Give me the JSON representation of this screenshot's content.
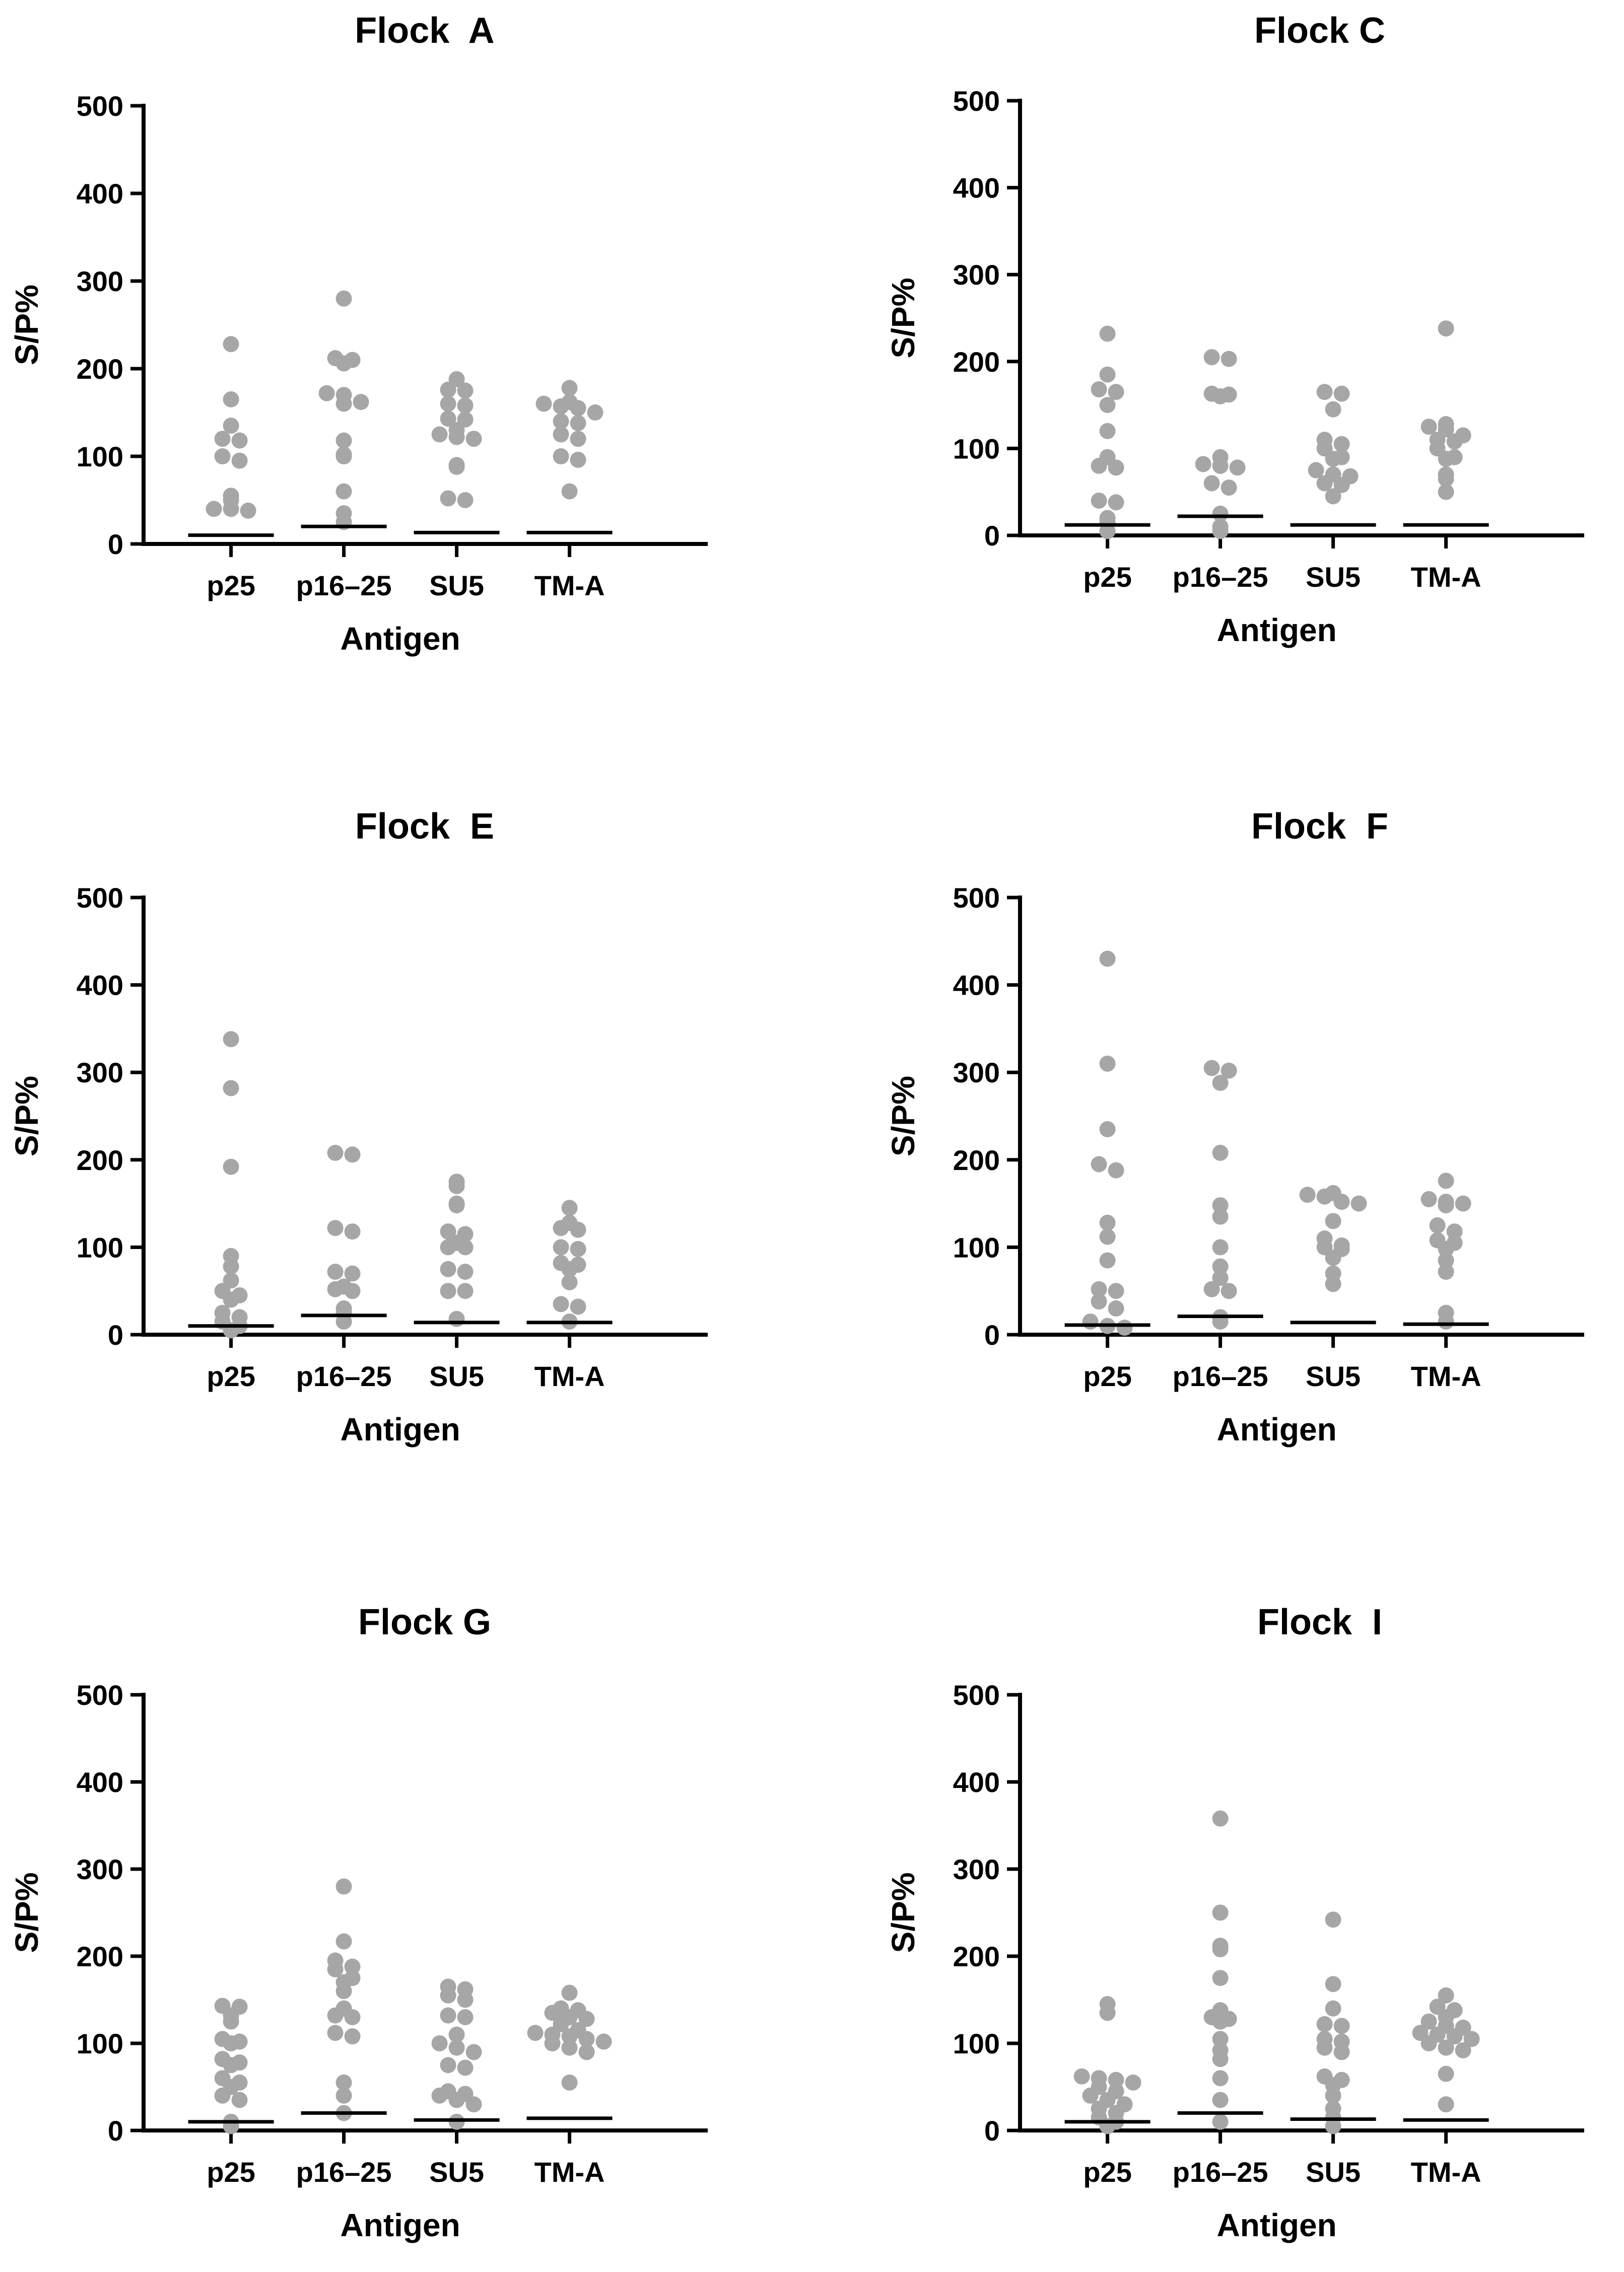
{
  "colors": {
    "point": "#a6a6a6",
    "axis": "#000000",
    "background": "#ffffff"
  },
  "chart_data": [
    {
      "type": "scatter",
      "title": "Flock  A",
      "xlabel": "Antigen",
      "ylabel": "S/P%",
      "ylim": [
        0,
        500
      ],
      "yticks": [
        "0",
        "100",
        "200",
        "300",
        "400",
        "500"
      ],
      "categories": [
        "p25",
        "p16–25",
        "SU5",
        "TM-A"
      ],
      "cutoffs": [
        10,
        20,
        13,
        13
      ],
      "series": [
        {
          "name": "p25",
          "values": [
            228,
            165,
            135,
            120,
            118,
            100,
            95,
            55,
            50,
            40,
            40,
            38
          ]
        },
        {
          "name": "p16–25",
          "values": [
            280,
            212,
            210,
            206,
            172,
            170,
            162,
            160,
            118,
            102,
            100,
            60,
            35,
            25
          ]
        },
        {
          "name": "SU5",
          "values": [
            188,
            176,
            175,
            160,
            158,
            143,
            142,
            130,
            125,
            122,
            120,
            90,
            88,
            52,
            50
          ]
        },
        {
          "name": "TM-A",
          "values": [
            178,
            162,
            160,
            157,
            155,
            150,
            140,
            138,
            125,
            120,
            100,
            96,
            60
          ]
        }
      ]
    },
    {
      "type": "scatter",
      "title": "Flock C",
      "xlabel": "Antigen",
      "ylabel": "S/P%",
      "ylim": [
        0,
        500
      ],
      "yticks": [
        "0",
        "100",
        "200",
        "300",
        "400",
        "500"
      ],
      "categories": [
        "p25",
        "p16–25",
        "SU5",
        "TM-A"
      ],
      "cutoffs": [
        12,
        22,
        12,
        12
      ],
      "series": [
        {
          "name": "p25",
          "values": [
            232,
            185,
            168,
            165,
            150,
            120,
            90,
            80,
            78,
            40,
            38,
            20,
            15,
            5
          ]
        },
        {
          "name": "p16–25",
          "values": [
            205,
            203,
            163,
            162,
            160,
            90,
            82,
            80,
            78,
            60,
            55,
            25,
            10,
            5
          ]
        },
        {
          "name": "SU5",
          "values": [
            165,
            163,
            145,
            110,
            105,
            100,
            90,
            88,
            75,
            70,
            68,
            60,
            58,
            45
          ]
        },
        {
          "name": "TM-A",
          "values": [
            238,
            128,
            125,
            122,
            115,
            110,
            108,
            100,
            90,
            88,
            70,
            65,
            50
          ]
        }
      ]
    },
    {
      "type": "scatter",
      "title": "Flock  E",
      "xlabel": "Antigen",
      "ylabel": "S/P%",
      "ylim": [
        0,
        500
      ],
      "yticks": [
        "0",
        "100",
        "200",
        "300",
        "400",
        "500"
      ],
      "categories": [
        "p25",
        "p16–25",
        "SU5",
        "TM-A"
      ],
      "cutoffs": [
        10,
        22,
        14,
        14
      ],
      "series": [
        {
          "name": "p25",
          "values": [
            338,
            282,
            192,
            90,
            78,
            62,
            50,
            45,
            40,
            25,
            20,
            15,
            10,
            5
          ]
        },
        {
          "name": "p16–25",
          "values": [
            208,
            206,
            122,
            118,
            72,
            70,
            55,
            52,
            50,
            30,
            25,
            15
          ]
        },
        {
          "name": "SU5",
          "values": [
            175,
            170,
            150,
            148,
            118,
            115,
            105,
            100,
            100,
            75,
            72,
            50,
            50,
            18
          ]
        },
        {
          "name": "TM-A",
          "values": [
            145,
            128,
            122,
            120,
            100,
            98,
            82,
            80,
            75,
            60,
            35,
            32,
            15
          ]
        }
      ]
    },
    {
      "type": "scatter",
      "title": "Flock  F",
      "xlabel": "Antigen",
      "ylabel": "S/P%",
      "ylim": [
        0,
        500
      ],
      "yticks": [
        "0",
        "100",
        "200",
        "300",
        "400",
        "500"
      ],
      "categories": [
        "p25",
        "p16–25",
        "SU5",
        "TM-A"
      ],
      "cutoffs": [
        11,
        21,
        14,
        12
      ],
      "series": [
        {
          "name": "p25",
          "values": [
            430,
            310,
            235,
            195,
            188,
            128,
            112,
            85,
            52,
            50,
            38,
            30,
            15,
            10,
            8
          ]
        },
        {
          "name": "p16–25",
          "values": [
            305,
            302,
            288,
            208,
            148,
            135,
            100,
            78,
            65,
            52,
            50,
            20,
            15
          ]
        },
        {
          "name": "SU5",
          "values": [
            162,
            160,
            158,
            152,
            150,
            130,
            110,
            102,
            100,
            98,
            88,
            70,
            58
          ]
        },
        {
          "name": "TM-A",
          "values": [
            176,
            155,
            152,
            150,
            148,
            125,
            118,
            108,
            105,
            98,
            85,
            72,
            25,
            15
          ]
        }
      ]
    },
    {
      "type": "scatter",
      "title": "Flock G",
      "xlabel": "Antigen",
      "ylabel": "S/P%",
      "ylim": [
        0,
        500
      ],
      "yticks": [
        "0",
        "100",
        "200",
        "300",
        "400",
        "500"
      ],
      "categories": [
        "p25",
        "p16–25",
        "SU5",
        "TM-A"
      ],
      "cutoffs": [
        10,
        20,
        12,
        14
      ],
      "series": [
        {
          "name": "p25",
          "values": [
            143,
            142,
            132,
            125,
            105,
            102,
            100,
            82,
            78,
            75,
            60,
            55,
            50,
            40,
            35,
            10,
            5
          ]
        },
        {
          "name": "p16–25",
          "values": [
            280,
            217,
            195,
            188,
            185,
            175,
            170,
            160,
            140,
            132,
            130,
            112,
            108,
            55,
            40,
            20
          ]
        },
        {
          "name": "SU5",
          "values": [
            165,
            162,
            155,
            150,
            132,
            130,
            110,
            100,
            95,
            90,
            75,
            72,
            45,
            42,
            40,
            35,
            30,
            10
          ]
        },
        {
          "name": "TM-A",
          "values": [
            158,
            140,
            138,
            135,
            130,
            128,
            122,
            115,
            112,
            110,
            108,
            105,
            102,
            100,
            95,
            90,
            55
          ]
        }
      ]
    },
    {
      "type": "scatter",
      "title": "Flock  I",
      "xlabel": "Antigen",
      "ylabel": "S/P%",
      "ylim": [
        0,
        500
      ],
      "yticks": [
        "0",
        "100",
        "200",
        "300",
        "400",
        "500"
      ],
      "categories": [
        "p25",
        "p16–25",
        "SU5",
        "TM-A"
      ],
      "cutoffs": [
        10,
        20,
        13,
        12
      ],
      "series": [
        {
          "name": "p25",
          "values": [
            145,
            135,
            62,
            60,
            58,
            55,
            50,
            45,
            40,
            35,
            30,
            25,
            20,
            15,
            10,
            5
          ]
        },
        {
          "name": "p16–25",
          "values": [
            358,
            250,
            212,
            208,
            175,
            138,
            130,
            128,
            125,
            105,
            92,
            82,
            60,
            35,
            10
          ]
        },
        {
          "name": "SU5",
          "values": [
            242,
            168,
            140,
            122,
            120,
            105,
            102,
            95,
            90,
            62,
            58,
            52,
            40,
            25,
            15,
            5
          ]
        },
        {
          "name": "TM-A",
          "values": [
            155,
            142,
            138,
            130,
            125,
            120,
            118,
            112,
            110,
            108,
            105,
            100,
            95,
            92,
            65,
            30
          ]
        }
      ]
    }
  ]
}
